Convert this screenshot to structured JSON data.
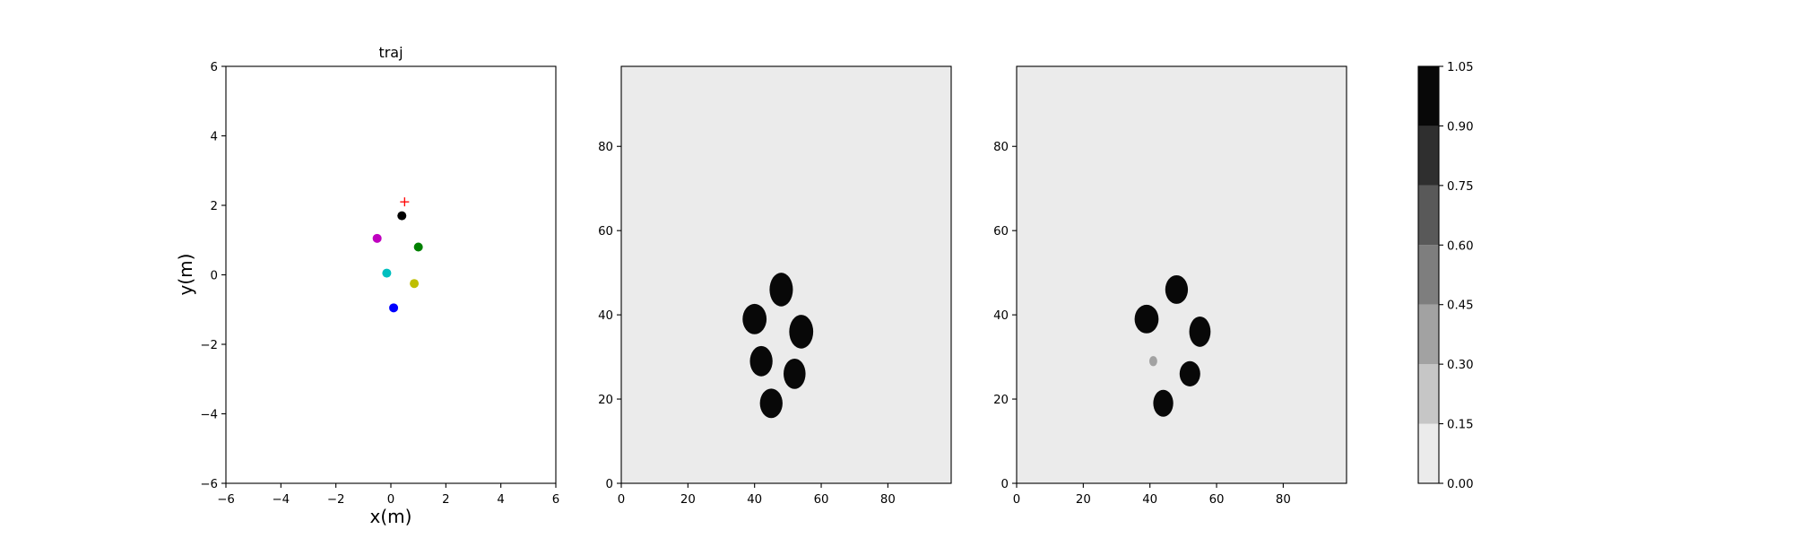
{
  "chart_data": [
    {
      "type": "scatter",
      "title": "traj",
      "xlabel": "x(m)",
      "ylabel": "y(m)",
      "xlim": [
        -6,
        6
      ],
      "ylim": [
        -6,
        6
      ],
      "xticks": [
        -6,
        -4,
        -2,
        0,
        2,
        4,
        6
      ],
      "yticks": [
        -6,
        -4,
        -2,
        0,
        2,
        4,
        6
      ],
      "grid": false,
      "points": [
        {
          "x": 0.4,
          "y": 1.7,
          "color": "#000000"
        },
        {
          "x": -0.5,
          "y": 1.05,
          "color": "#bf00bf"
        },
        {
          "x": 1.0,
          "y": 0.8,
          "color": "#008000"
        },
        {
          "x": -0.15,
          "y": 0.05,
          "color": "#00bfbf"
        },
        {
          "x": 0.85,
          "y": -0.25,
          "color": "#bfbf00"
        },
        {
          "x": 0.1,
          "y": -0.95,
          "color": "#0000ff"
        }
      ],
      "target": {
        "x": 0.5,
        "y": 2.1,
        "marker": "+",
        "color": "#ff0000"
      }
    },
    {
      "type": "heatmap",
      "xlim": [
        0,
        99
      ],
      "ylim": [
        0,
        99
      ],
      "xticks": [
        0,
        20,
        40,
        60,
        80
      ],
      "yticks": [
        0,
        20,
        40,
        60,
        80
      ],
      "background_value": 0.08,
      "blobs": [
        {
          "x": 48,
          "y": 46,
          "rx": 3.5,
          "ry": 4.0,
          "value": 1.0
        },
        {
          "x": 40,
          "y": 39,
          "rx": 3.6,
          "ry": 3.6,
          "value": 1.0
        },
        {
          "x": 54,
          "y": 36,
          "rx": 3.6,
          "ry": 4.0,
          "value": 1.0
        },
        {
          "x": 42,
          "y": 29,
          "rx": 3.4,
          "ry": 3.6,
          "value": 1.0
        },
        {
          "x": 52,
          "y": 26,
          "rx": 3.3,
          "ry": 3.6,
          "value": 1.0
        },
        {
          "x": 45,
          "y": 19,
          "rx": 3.4,
          "ry": 3.5,
          "value": 1.0
        }
      ]
    },
    {
      "type": "heatmap",
      "xlim": [
        0,
        99
      ],
      "ylim": [
        0,
        99
      ],
      "xticks": [
        0,
        20,
        40,
        60,
        80
      ],
      "yticks": [
        0,
        20,
        40,
        60,
        80
      ],
      "background_value": 0.08,
      "blobs": [
        {
          "x": 48,
          "y": 46,
          "rx": 3.4,
          "ry": 3.4,
          "value": 1.0
        },
        {
          "x": 39,
          "y": 39,
          "rx": 3.6,
          "ry": 3.4,
          "value": 1.0
        },
        {
          "x": 55,
          "y": 36,
          "rx": 3.2,
          "ry": 3.6,
          "value": 1.0
        },
        {
          "x": 41,
          "y": 29,
          "rx": 1.2,
          "ry": 1.2,
          "value": 0.35
        },
        {
          "x": 52,
          "y": 26,
          "rx": 3.1,
          "ry": 3.0,
          "value": 1.0
        },
        {
          "x": 44,
          "y": 19,
          "rx": 3.0,
          "ry": 3.2,
          "value": 1.0
        }
      ]
    }
  ],
  "colorbar": {
    "levels": [
      0.0,
      0.15,
      0.3,
      0.45,
      0.6,
      0.75,
      0.9,
      1.05
    ],
    "labels": [
      "0.00",
      "0.15",
      "0.30",
      "0.45",
      "0.60",
      "0.75",
      "0.90",
      "1.05"
    ],
    "colors": [
      "#ebebeb",
      "#c6c6c6",
      "#a2a2a2",
      "#7e7e7e",
      "#595959",
      "#2f2f2f",
      "#080808"
    ]
  }
}
